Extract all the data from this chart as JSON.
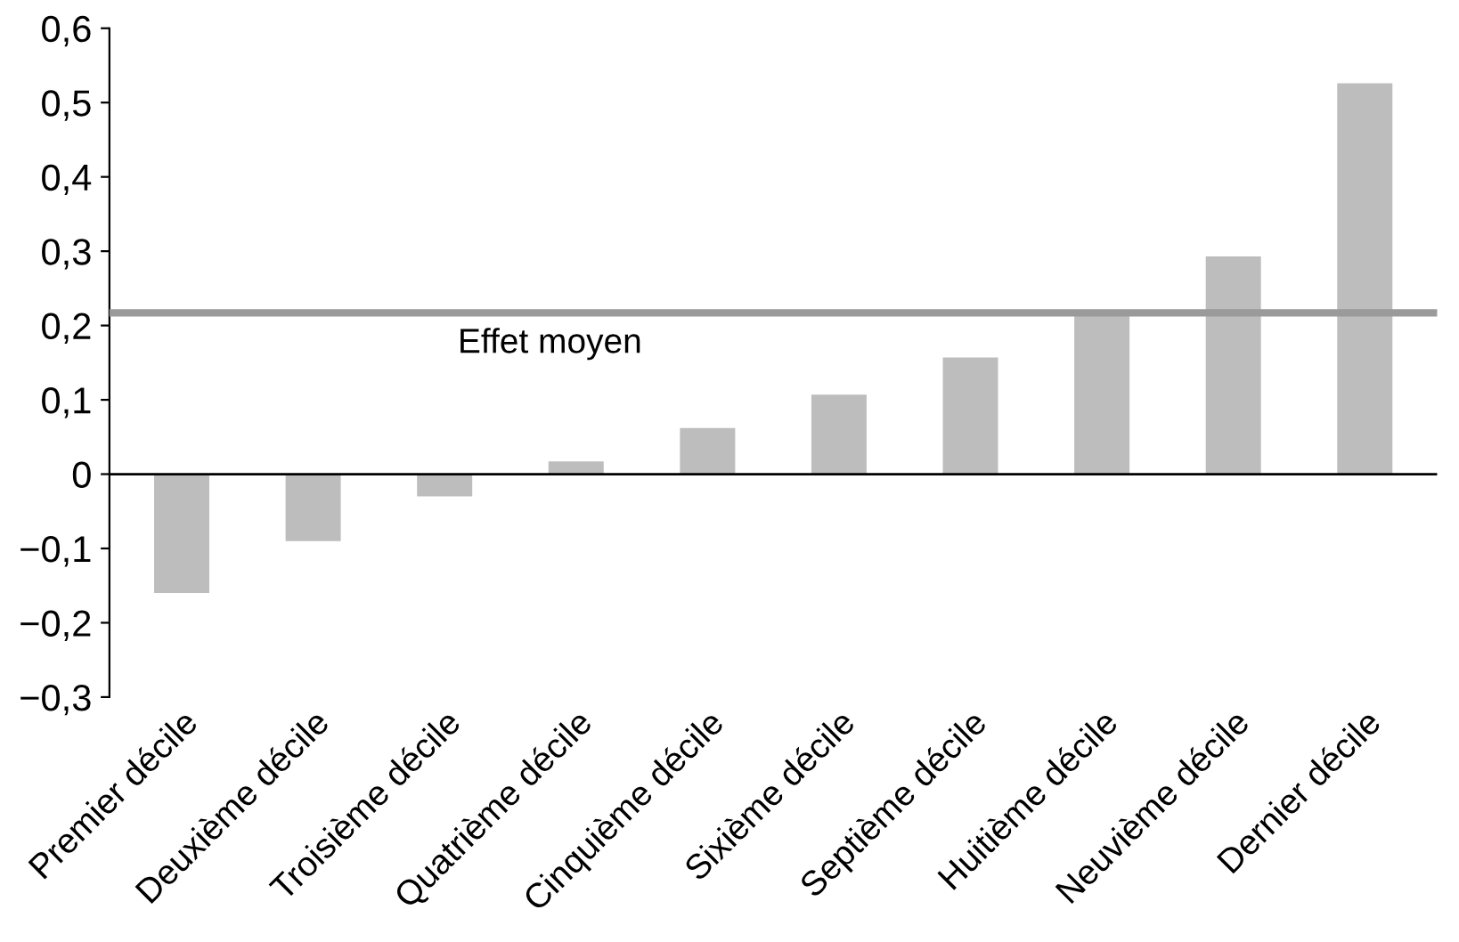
{
  "chart_data": {
    "type": "bar",
    "categories": [
      "Premier décile",
      "Deuxième décile",
      "Troisième décile",
      "Quatrième décile",
      "Cinquième décile",
      "Sixième décile",
      "Septième décile",
      "Huitième décile",
      "Neuvième décile",
      "Dernier décile"
    ],
    "values": [
      -0.16,
      -0.09,
      -0.03,
      0.017,
      0.062,
      0.107,
      0.157,
      0.214,
      0.293,
      0.526
    ],
    "color": "#bdbdbd",
    "ylim": [
      -0.3,
      0.6
    ],
    "yticks": [
      {
        "value": -0.3,
        "label": "−0,3"
      },
      {
        "value": -0.2,
        "label": "−0,2"
      },
      {
        "value": -0.1,
        "label": "−0,1"
      },
      {
        "value": 0,
        "label": "0"
      },
      {
        "value": 0.1,
        "label": "0,1"
      },
      {
        "value": 0.2,
        "label": "0,2"
      },
      {
        "value": 0.3,
        "label": "0,3"
      },
      {
        "value": 0.4,
        "label": "0,4"
      },
      {
        "value": 0.5,
        "label": "0,5"
      },
      {
        "value": 0.6,
        "label": "0,6"
      }
    ],
    "ref_lines": [
      {
        "axis": "y",
        "value": 0.217,
        "label": "Effet moyen",
        "color": "#9a9a9a"
      }
    ],
    "legend": false
  }
}
